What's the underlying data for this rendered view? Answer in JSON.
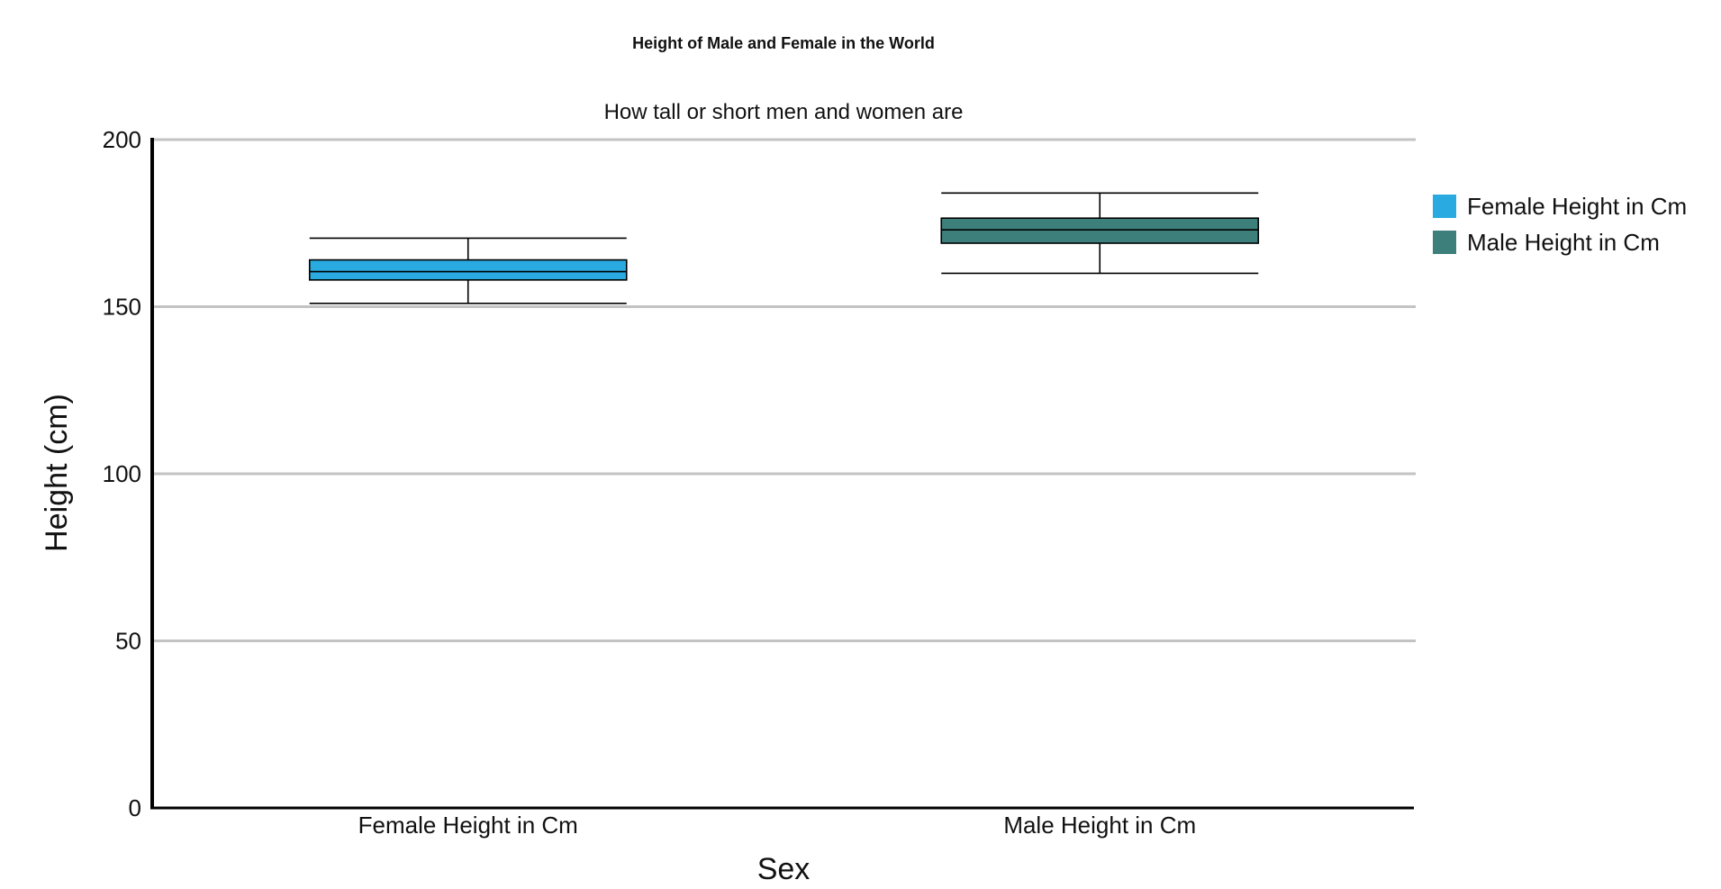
{
  "chart_data": {
    "type": "box",
    "title": "Height of Male and Female in the World",
    "subtitle": "How tall or short men and women are",
    "xlabel": "Sex",
    "ylabel": "Height (cm)",
    "ylim": [
      0,
      200
    ],
    "yticks": [
      0,
      50,
      100,
      150,
      200
    ],
    "grid": true,
    "legend_position": "right",
    "categories": [
      "Female Height in Cm",
      "Male Height in Cm"
    ],
    "series": [
      {
        "name": "Female Height in Cm",
        "color": "#29ABE2",
        "min": 151,
        "q1": 158,
        "median": 160.5,
        "q3": 164,
        "max": 170.5
      },
      {
        "name": "Male Height in Cm",
        "color": "#3D7F7A",
        "min": 160,
        "q1": 169,
        "median": 173,
        "q3": 176.5,
        "max": 184
      }
    ]
  }
}
